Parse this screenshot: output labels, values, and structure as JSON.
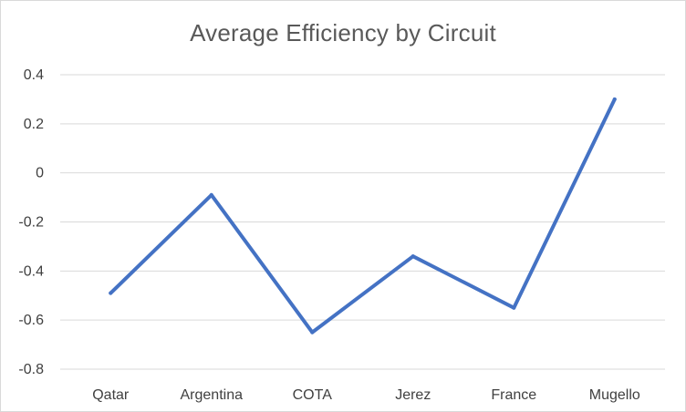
{
  "chart_data": {
    "type": "line",
    "title": "Average Efficiency by Circuit",
    "xlabel": "",
    "ylabel": "",
    "categories": [
      "Qatar",
      "Argentina",
      "COTA",
      "Jerez",
      "France",
      "Mugello"
    ],
    "series": [
      {
        "values": [
          -0.49,
          -0.09,
          -0.65,
          -0.34,
          -0.55,
          0.3
        ],
        "color": "#4472C4"
      }
    ],
    "ylim": [
      -0.8,
      0.4
    ],
    "yticks": [
      "0.4",
      "0.2",
      "0",
      "-0.2",
      "-0.4",
      "-0.6",
      "-0.8"
    ],
    "ytick_values": [
      0.4,
      0.2,
      0,
      -0.2,
      -0.4,
      -0.6,
      -0.8
    ],
    "grid": true,
    "gridline_color": "#d9d9d9",
    "legend": "none"
  }
}
